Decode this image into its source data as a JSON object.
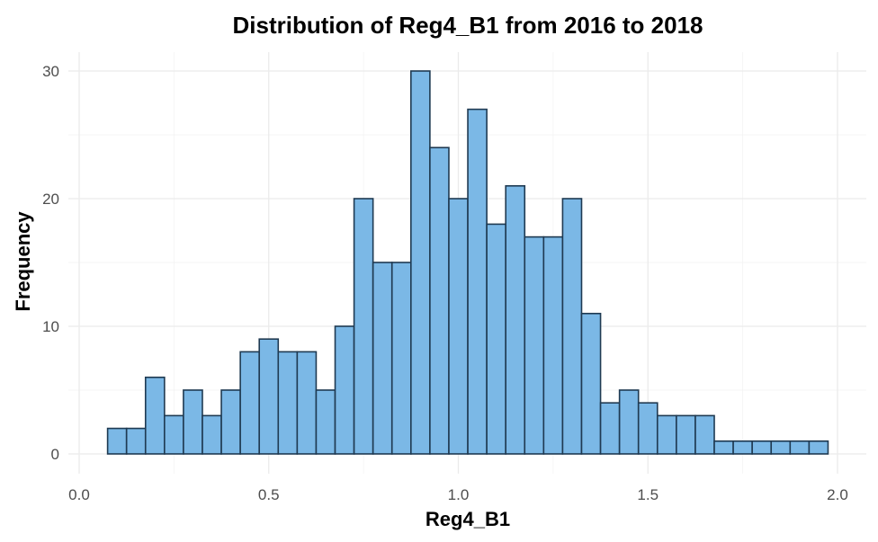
{
  "chart_data": {
    "type": "bar",
    "title": "Distribution of Reg4_B1 from 2016 to 2018",
    "xlabel": "Reg4_B1",
    "ylabel": "Frequency",
    "xlim": [
      0.0,
      2.0
    ],
    "ylim": [
      0,
      30
    ],
    "x_ticks": [
      0.0,
      0.5,
      1.0,
      1.5,
      2.0
    ],
    "x_tick_labels": [
      "0.0",
      "0.5",
      "1.0",
      "1.5",
      "2.0"
    ],
    "y_ticks": [
      0,
      10,
      20,
      30
    ],
    "y_tick_labels": [
      "0",
      "10",
      "20",
      "30"
    ],
    "grid": true,
    "legend": "none",
    "bar_color": "#7bb8e6",
    "bar_edge_color": "#1f3a52",
    "bins": [
      {
        "x0": 0.075,
        "x1": 0.125,
        "count": 2
      },
      {
        "x0": 0.125,
        "x1": 0.175,
        "count": 2
      },
      {
        "x0": 0.175,
        "x1": 0.225,
        "count": 6
      },
      {
        "x0": 0.225,
        "x1": 0.275,
        "count": 3
      },
      {
        "x0": 0.275,
        "x1": 0.325,
        "count": 5
      },
      {
        "x0": 0.325,
        "x1": 0.375,
        "count": 3
      },
      {
        "x0": 0.375,
        "x1": 0.425,
        "count": 5
      },
      {
        "x0": 0.425,
        "x1": 0.475,
        "count": 8
      },
      {
        "x0": 0.475,
        "x1": 0.525,
        "count": 9
      },
      {
        "x0": 0.525,
        "x1": 0.575,
        "count": 8
      },
      {
        "x0": 0.575,
        "x1": 0.625,
        "count": 8
      },
      {
        "x0": 0.625,
        "x1": 0.675,
        "count": 5
      },
      {
        "x0": 0.675,
        "x1": 0.725,
        "count": 10
      },
      {
        "x0": 0.725,
        "x1": 0.775,
        "count": 20
      },
      {
        "x0": 0.775,
        "x1": 0.825,
        "count": 15
      },
      {
        "x0": 0.825,
        "x1": 0.875,
        "count": 15
      },
      {
        "x0": 0.875,
        "x1": 0.925,
        "count": 30
      },
      {
        "x0": 0.925,
        "x1": 0.975,
        "count": 24
      },
      {
        "x0": 0.975,
        "x1": 1.025,
        "count": 20
      },
      {
        "x0": 1.025,
        "x1": 1.075,
        "count": 27
      },
      {
        "x0": 1.075,
        "x1": 1.125,
        "count": 18
      },
      {
        "x0": 1.125,
        "x1": 1.175,
        "count": 21
      },
      {
        "x0": 1.175,
        "x1": 1.225,
        "count": 17
      },
      {
        "x0": 1.225,
        "x1": 1.275,
        "count": 17
      },
      {
        "x0": 1.275,
        "x1": 1.325,
        "count": 20
      },
      {
        "x0": 1.325,
        "x1": 1.375,
        "count": 11
      },
      {
        "x0": 1.375,
        "x1": 1.425,
        "count": 4
      },
      {
        "x0": 1.425,
        "x1": 1.475,
        "count": 5
      },
      {
        "x0": 1.475,
        "x1": 1.525,
        "count": 4
      },
      {
        "x0": 1.525,
        "x1": 1.575,
        "count": 3
      },
      {
        "x0": 1.575,
        "x1": 1.625,
        "count": 3
      },
      {
        "x0": 1.625,
        "x1": 1.675,
        "count": 3
      },
      {
        "x0": 1.675,
        "x1": 1.725,
        "count": 1
      },
      {
        "x0": 1.725,
        "x1": 1.775,
        "count": 1
      },
      {
        "x0": 1.775,
        "x1": 1.825,
        "count": 1
      },
      {
        "x0": 1.825,
        "x1": 1.875,
        "count": 1
      },
      {
        "x0": 1.875,
        "x1": 1.925,
        "count": 1
      },
      {
        "x0": 1.925,
        "x1": 1.975,
        "count": 1
      }
    ]
  }
}
